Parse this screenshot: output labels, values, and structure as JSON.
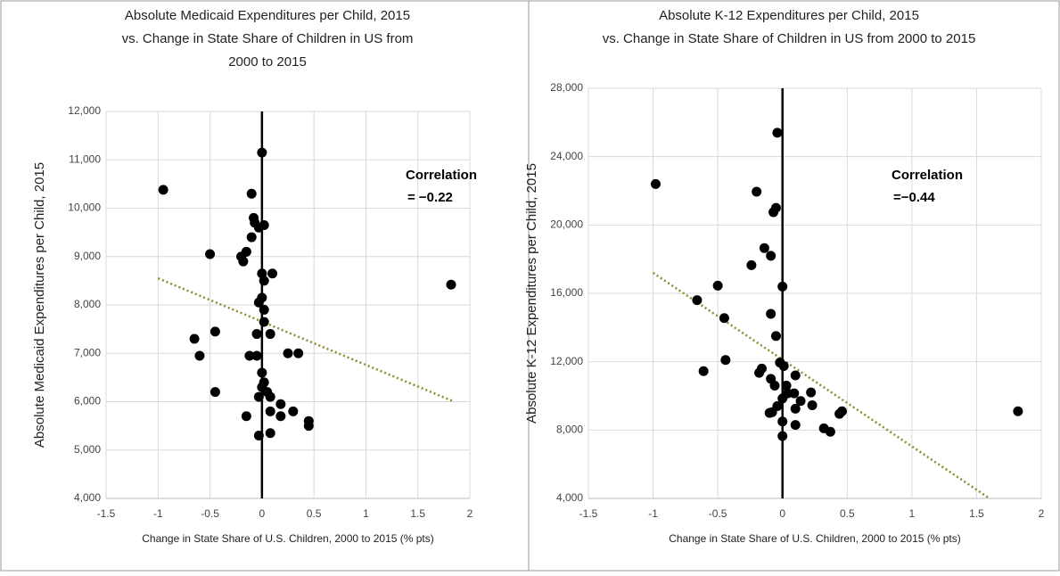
{
  "chart_data": [
    {
      "type": "scatter",
      "title": [
        "Absolute Medicaid Expenditures per Child, 2015",
        "vs. Change in State Share of Children in US from",
        "2000 to 2015"
      ],
      "x_label": "Change in State Share of U.S. Children, 2000 to 2015 (% pts)",
      "y_label": "Absolute Medicaid Expenditures per Child, 2015",
      "annotations": [
        "Correlation",
        "= −0.22"
      ],
      "color": "#000000",
      "x": [
        -0.95,
        0,
        -0.1,
        -0.08,
        -0.07,
        -0.03,
        0.02,
        -0.1,
        -0.15,
        -0.5,
        -0.2,
        -0.18,
        0.1,
        0,
        0.02,
        1.82,
        0,
        -0.03,
        0.02,
        0.02,
        -0.45,
        -0.05,
        0.08,
        -0.65,
        -0.6,
        -0.12,
        -0.05,
        0.25,
        0.35,
        0,
        0.02,
        0,
        -0.45,
        0.05,
        -0.03,
        0.08,
        0.18,
        0.3,
        0.08,
        -0.15,
        0.18,
        0.45,
        0.45,
        -0.03,
        0.08
      ],
      "values": [
        10380,
        11150,
        10300,
        9800,
        9700,
        9600,
        9650,
        9400,
        9100,
        9050,
        9000,
        8900,
        8650,
        8650,
        8500,
        8420,
        8150,
        8050,
        7900,
        7650,
        7450,
        7400,
        7400,
        7300,
        6950,
        6950,
        6950,
        7000,
        7000,
        6600,
        6400,
        6300,
        6200,
        6200,
        6100,
        6100,
        5950,
        5800,
        5800,
        5700,
        5700,
        5600,
        5500,
        5300,
        5350
      ],
      "trend_line": {
        "x": [
          -1,
          1.85
        ],
        "y": [
          8550,
          6000
        ],
        "color": "#8c8c2a"
      },
      "xlim": [
        -1.5,
        2
      ],
      "xticks": [
        -1.5,
        -1,
        -0.5,
        0,
        0.5,
        1,
        1.5,
        2
      ],
      "ylim": [
        4000,
        12000
      ],
      "yticks": [
        {
          "value": 4000,
          "label": "4,000"
        },
        {
          "value": 5000,
          "label": "5,000"
        },
        {
          "value": 6000,
          "label": "6,000"
        },
        {
          "value": 7000,
          "label": "7,000"
        },
        {
          "value": 8000,
          "label": "8,000"
        },
        {
          "value": 9000,
          "label": "9,000"
        },
        {
          "value": 10000,
          "label": "10,000"
        },
        {
          "value": 11000,
          "label": "11,000"
        },
        {
          "value": 12000,
          "label": "12,000"
        }
      ],
      "grid": true
    },
    {
      "type": "scatter",
      "title": [
        "Absolute K-12 Expenditures per Child, 2015",
        "vs. Change in State Share of Children in US from 2000 to 2015"
      ],
      "x_label": "Change in State Share of U.S. Children, 2000 to 2015 (% pts)",
      "y_label": "Absolute K-12 Expenditures per Child, 2015",
      "annotations": [
        "Correlation",
        "=−0.44"
      ],
      "color": "#000000",
      "x": [
        -0.98,
        -0.04,
        -0.2,
        -0.05,
        -0.07,
        -0.14,
        -0.09,
        -0.24,
        0,
        -0.5,
        -0.66,
        -0.45,
        -0.09,
        -0.05,
        -0.44,
        -0.61,
        -0.16,
        -0.18,
        -0.02,
        0.01,
        -0.09,
        -0.06,
        0.03,
        0.1,
        0.04,
        0.09,
        0.22,
        0,
        0.14,
        0.23,
        -0.04,
        -0.1,
        -0.08,
        0.1,
        0.46,
        0.44,
        0,
        0.1,
        0.32,
        0.37,
        0,
        1.82
      ],
      "values": [
        22400,
        25400,
        21950,
        21000,
        20750,
        18650,
        18200,
        17650,
        16400,
        16450,
        15600,
        14550,
        14800,
        13500,
        12100,
        11450,
        11600,
        11350,
        11950,
        11750,
        11000,
        10600,
        10600,
        11200,
        10150,
        10150,
        10200,
        9850,
        9700,
        9450,
        9400,
        9000,
        9050,
        9250,
        9100,
        8950,
        8500,
        8300,
        8100,
        7900,
        7650,
        9100
      ],
      "trend_line": {
        "x": [
          -1,
          1.6
        ],
        "y": [
          17200,
          4000
        ],
        "color": "#8c8c2a"
      },
      "xlim": [
        -1.5,
        2
      ],
      "xticks": [
        -1.5,
        -1,
        -0.5,
        0,
        0.5,
        1,
        1.5,
        2
      ],
      "ylim": [
        4000,
        28000
      ],
      "yticks": [
        {
          "value": 4000,
          "label": "4,000"
        },
        {
          "value": 8000,
          "label": "8,000"
        },
        {
          "value": 12000,
          "label": "12,000"
        },
        {
          "value": 16000,
          "label": "16,000"
        },
        {
          "value": 20000,
          "label": "20,000"
        },
        {
          "value": 24000,
          "label": "24,000"
        },
        {
          "value": 28000,
          "label": "28,000"
        }
      ],
      "grid": true
    }
  ]
}
